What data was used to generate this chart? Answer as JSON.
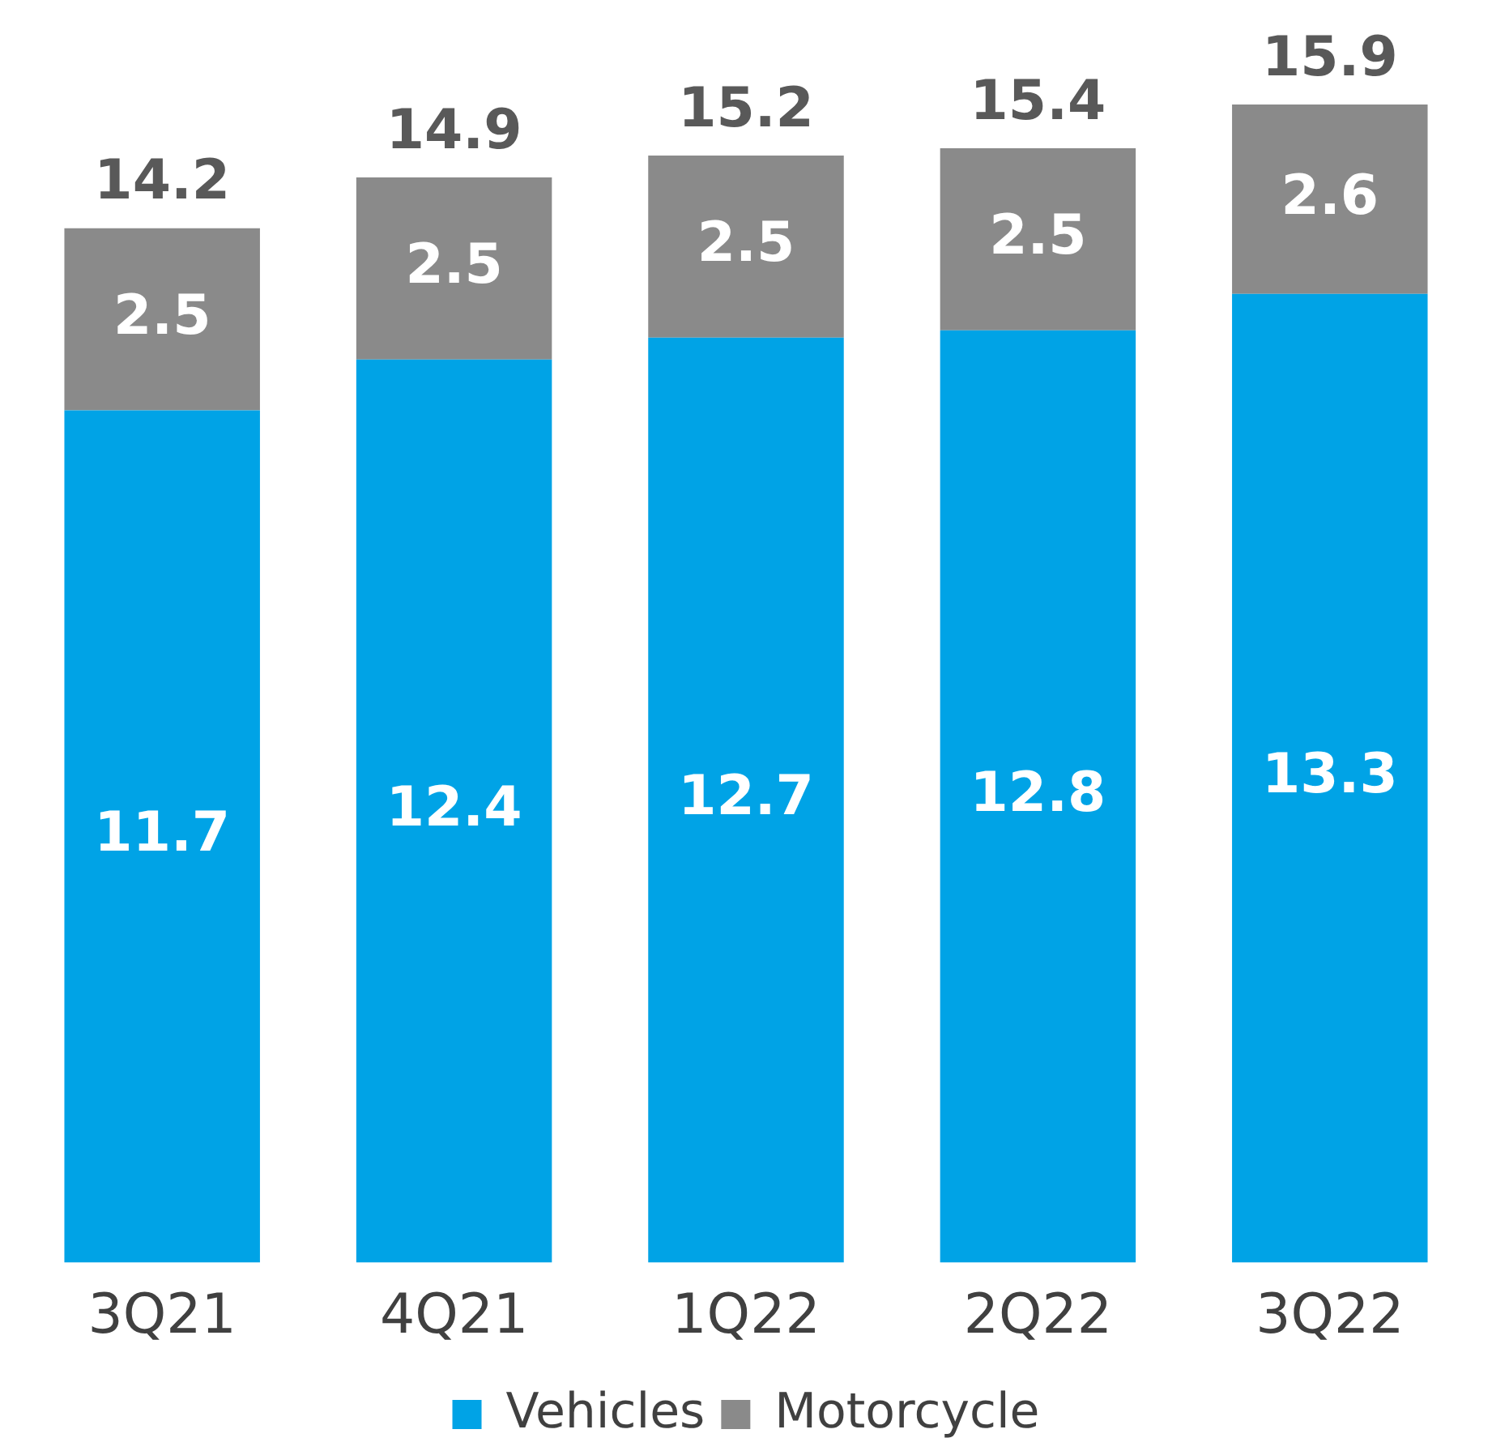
{
  "chart_data": {
    "type": "bar",
    "stacked": true,
    "categories": [
      "3Q21",
      "4Q21",
      "1Q22",
      "2Q22",
      "3Q22"
    ],
    "series": [
      {
        "name": "Vehicles",
        "color": "#00a3e6",
        "values": [
          11.7,
          12.4,
          12.7,
          12.8,
          13.3
        ]
      },
      {
        "name": "Motorcycle",
        "color": "#8a8a8a",
        "values": [
          2.5,
          2.5,
          2.5,
          2.5,
          2.6
        ]
      }
    ],
    "data_labels": true,
    "totals": [
      "14.2",
      "14.9",
      "15.2",
      "15.4",
      "15.9"
    ],
    "tick_labels": "x",
    "grid": false,
    "legend": "bottom"
  }
}
